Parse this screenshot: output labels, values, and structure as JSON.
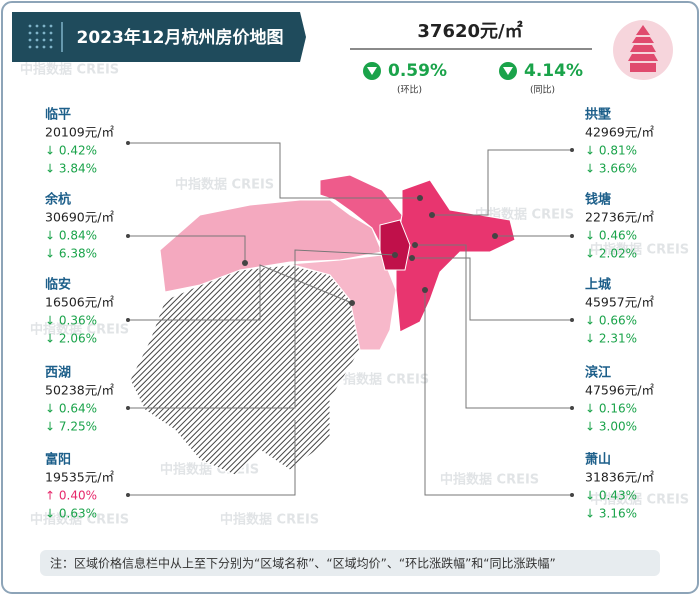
{
  "header": {
    "title": "2023年12月杭州房价地图"
  },
  "summary": {
    "price": "37620元/㎡",
    "mom": "0.59%",
    "mom_label": "(环比)",
    "yoy": "4.14%",
    "yoy_label": "(同比)"
  },
  "watermark": "中指数据 CREIS",
  "districts": [
    {
      "name": "临平",
      "price": "20109元/㎡",
      "mom": "↓ 0.42%",
      "yoy": "↓ 3.84%"
    },
    {
      "name": "余杭",
      "price": "30690元/㎡",
      "mom": "↓ 0.84%",
      "yoy": "↓ 6.38%"
    },
    {
      "name": "临安",
      "price": "16506元/㎡",
      "mom": "↓ 0.36%",
      "yoy": "↓ 2.06%"
    },
    {
      "name": "西湖",
      "price": "50238元/㎡",
      "mom": "↓ 0.64%",
      "yoy": "↓ 7.25%"
    },
    {
      "name": "富阳",
      "price": "19535元/㎡",
      "mom": "↑ 0.40%",
      "yoy": "↓ 0.63%",
      "mom_color": "#e6296b"
    },
    {
      "name": "拱墅",
      "price": "42969元/㎡",
      "mom": "↓ 0.81%",
      "yoy": "↓ 3.66%"
    },
    {
      "name": "钱塘",
      "price": "22736元/㎡",
      "mom": "↓ 0.46%",
      "yoy": "↓ 2.02%"
    },
    {
      "name": "上城",
      "price": "45957元/㎡",
      "mom": "↓ 0.66%",
      "yoy": "↓ 2.31%"
    },
    {
      "name": "滨江",
      "price": "47596元/㎡",
      "mom": "↓ 0.16%",
      "yoy": "↓ 3.00%"
    },
    {
      "name": "萧山",
      "price": "31836元/㎡",
      "mom": "↓ 0.43%",
      "yoy": "↓ 3.16%"
    }
  ],
  "note": "注：区域价格信息栏中从上至下分别为“区域名称”、“区域均价”、“环比涨跌幅”和“同比涨跌幅”"
}
